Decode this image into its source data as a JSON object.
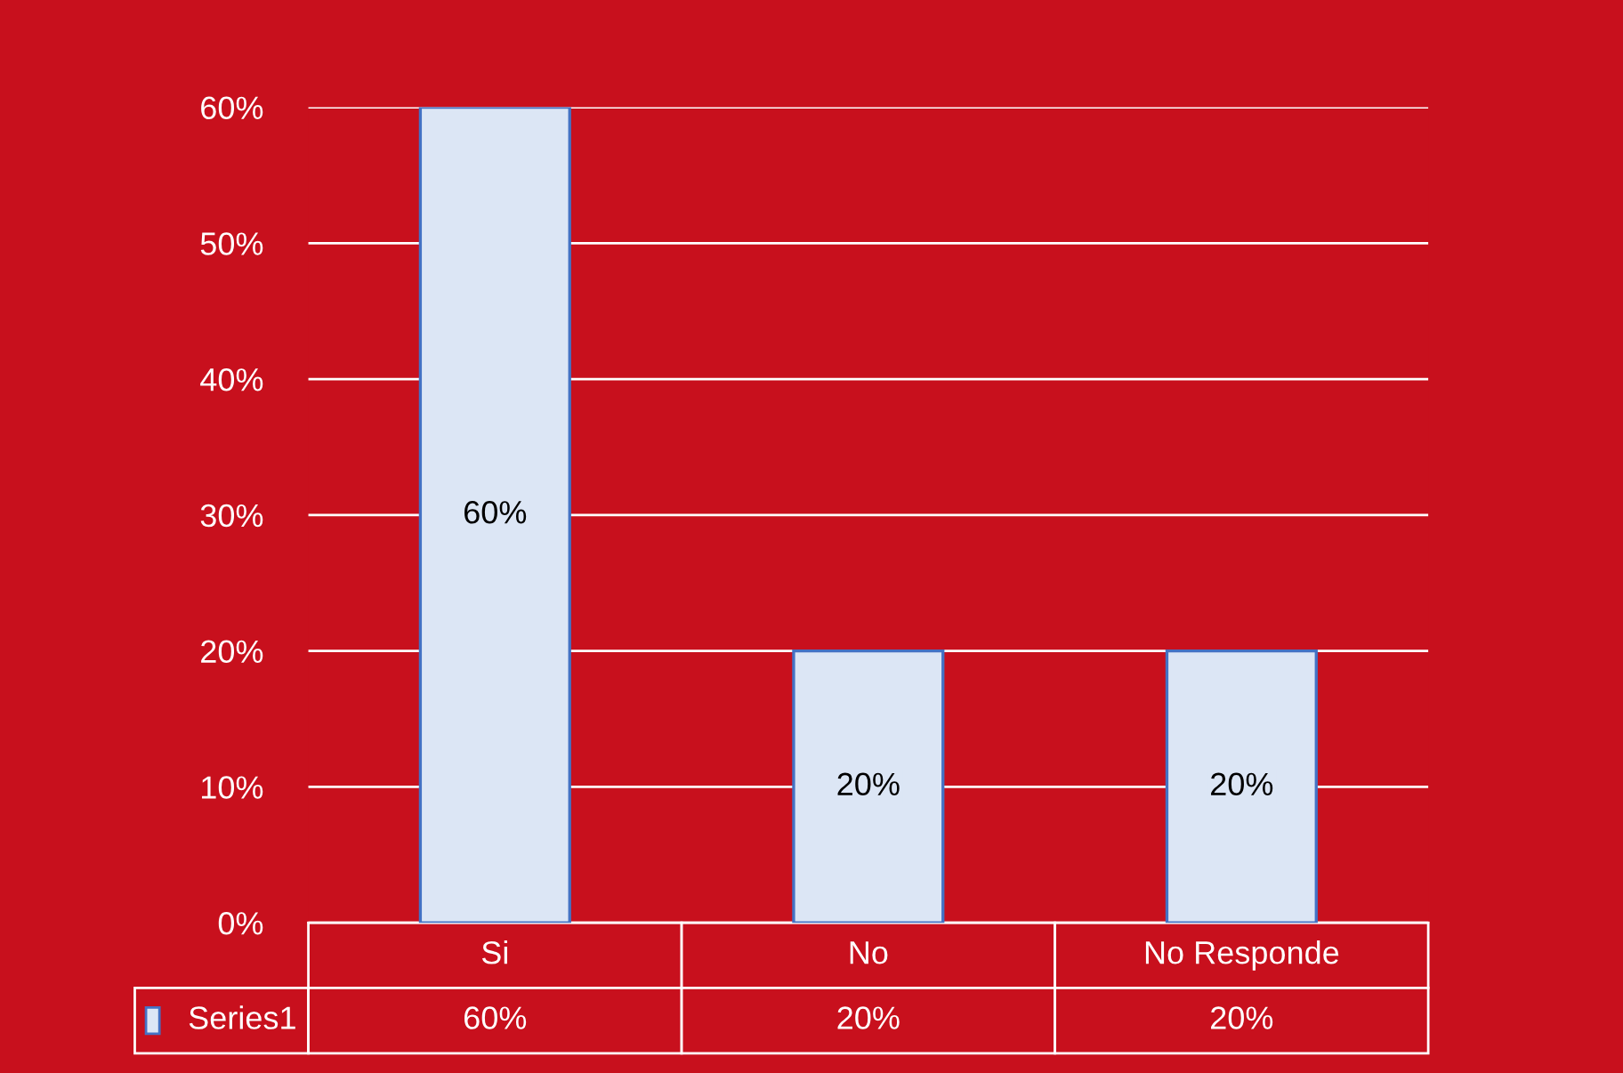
{
  "chart_data": {
    "type": "bar",
    "categories": [
      "Si",
      "No",
      "No Responde"
    ],
    "series": [
      {
        "name": "Series1",
        "color": "#dce6f5",
        "values": [
          60,
          20,
          20
        ],
        "value_labels": [
          "60%",
          "20%",
          "20%"
        ]
      }
    ],
    "ylim": [
      0,
      60
    ],
    "yticks": [
      {
        "value": 0,
        "label": "0%"
      },
      {
        "value": 10,
        "label": "10%"
      },
      {
        "value": 20,
        "label": "20%"
      },
      {
        "value": 30,
        "label": "30%"
      },
      {
        "value": 40,
        "label": "40%"
      },
      {
        "value": 50,
        "label": "50%"
      },
      {
        "value": 60,
        "label": "60%"
      }
    ],
    "grid": "y",
    "legend": "bottom"
  }
}
